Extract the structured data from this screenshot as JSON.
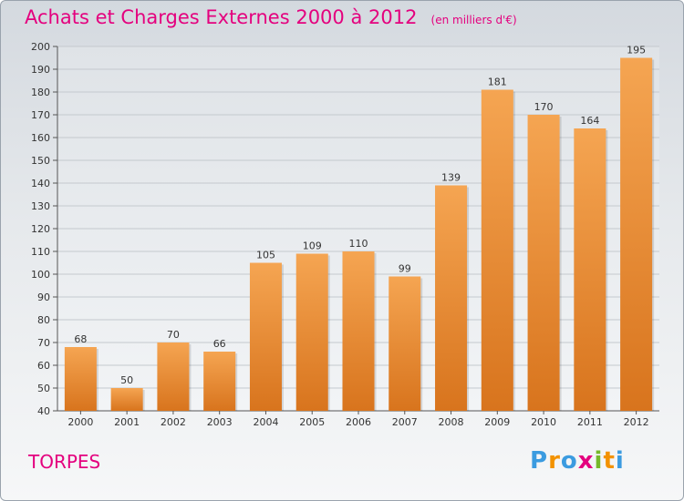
{
  "title": "Achats et Charges Externes 2000 à 2012",
  "unit": "(en milliers d'€)",
  "commune": "TORPES",
  "logo": {
    "text": "Proxiti",
    "letters": [
      {
        "ch": "P",
        "color": "#3b9be0"
      },
      {
        "ch": "r",
        "color": "#f39200"
      },
      {
        "ch": "o",
        "color": "#3b9be0"
      },
      {
        "ch": "x",
        "color": "#e4007e"
      },
      {
        "ch": "i",
        "color": "#76b82a"
      },
      {
        "ch": "t",
        "color": "#f39200"
      },
      {
        "ch": "i",
        "color": "#3b9be0"
      }
    ]
  },
  "colors": {
    "title": "#e4007e",
    "bar_light": "#f5a552",
    "bar_dark": "#d8741d",
    "grid": "#c4c9ce",
    "text": "#333333"
  },
  "chart_data": {
    "type": "bar",
    "categories": [
      "2000",
      "2001",
      "2002",
      "2003",
      "2004",
      "2005",
      "2006",
      "2007",
      "2008",
      "2009",
      "2010",
      "2011",
      "2012"
    ],
    "values": [
      68,
      50,
      70,
      66,
      105,
      109,
      110,
      99,
      139,
      181,
      170,
      164,
      195
    ],
    "ylim": [
      40,
      200
    ],
    "yticks": [
      40,
      50,
      60,
      70,
      80,
      90,
      100,
      110,
      120,
      130,
      140,
      150,
      160,
      170,
      180,
      190,
      200
    ],
    "grid": true,
    "xlabel": "",
    "ylabel": ""
  }
}
